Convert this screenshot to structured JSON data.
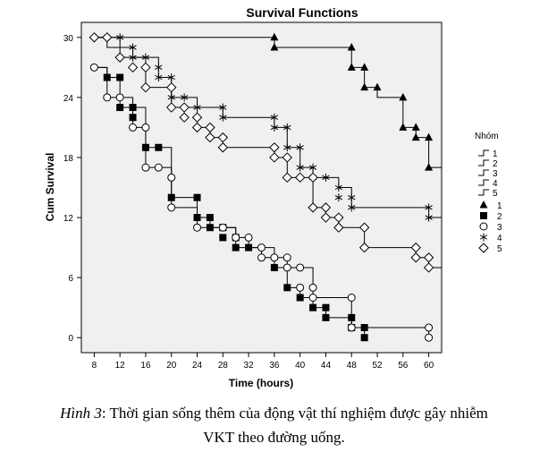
{
  "chart_data": {
    "type": "line",
    "title": "Survival Functions",
    "xlabel": "Time (hours)",
    "ylabel": "Cum Survival",
    "xlim": [
      6,
      62
    ],
    "ylim": [
      -1.5,
      31.5
    ],
    "xticks": [
      8,
      12,
      16,
      20,
      24,
      28,
      32,
      36,
      40,
      44,
      48,
      52,
      56,
      60
    ],
    "yticks": [
      0,
      6,
      12,
      18,
      24,
      30
    ],
    "legend_title": "Nhóm",
    "legend_position": "right",
    "series": [
      {
        "name": "1",
        "marker": "triangle",
        "steps": [
          [
            8,
            30
          ],
          [
            36,
            29
          ],
          [
            48,
            27
          ],
          [
            50,
            25
          ],
          [
            52,
            24
          ],
          [
            56,
            21
          ],
          [
            58,
            20
          ],
          [
            60,
            17
          ],
          [
            62,
            17
          ]
        ]
      },
      {
        "name": "2",
        "marker": "square",
        "steps": [
          [
            8,
            27
          ],
          [
            10,
            26
          ],
          [
            12,
            23
          ],
          [
            16,
            19
          ],
          [
            20,
            14
          ],
          [
            24,
            12
          ],
          [
            26,
            11
          ],
          [
            30,
            9
          ],
          [
            34,
            8
          ],
          [
            36,
            7
          ],
          [
            38,
            5
          ],
          [
            40,
            4
          ],
          [
            42,
            3
          ],
          [
            44,
            2
          ],
          [
            48,
            1
          ],
          [
            50,
            0
          ]
        ]
      },
      {
        "name": "3",
        "marker": "circle",
        "steps": [
          [
            8,
            27
          ],
          [
            10,
            24
          ],
          [
            14,
            21
          ],
          [
            16,
            17
          ],
          [
            20,
            13
          ],
          [
            24,
            11
          ],
          [
            30,
            10
          ],
          [
            32,
            9
          ],
          [
            36,
            8
          ],
          [
            38,
            7
          ],
          [
            42,
            4
          ],
          [
            48,
            1
          ],
          [
            60,
            0
          ]
        ]
      },
      {
        "name": "4",
        "marker": "star",
        "steps": [
          [
            8,
            30
          ],
          [
            12,
            29
          ],
          [
            14,
            28
          ],
          [
            18,
            26
          ],
          [
            20,
            24
          ],
          [
            24,
            23
          ],
          [
            28,
            22
          ],
          [
            36,
            21
          ],
          [
            38,
            19
          ],
          [
            40,
            17
          ],
          [
            42,
            16
          ],
          [
            46,
            15
          ],
          [
            48,
            13
          ],
          [
            60,
            12
          ],
          [
            62,
            12
          ]
        ]
      },
      {
        "name": "5",
        "marker": "diamond",
        "steps": [
          [
            8,
            30
          ],
          [
            10,
            29
          ],
          [
            12,
            28
          ],
          [
            16,
            25
          ],
          [
            20,
            23
          ],
          [
            24,
            21
          ],
          [
            26,
            20
          ],
          [
            28,
            19
          ],
          [
            36,
            18
          ],
          [
            38,
            16
          ],
          [
            42,
            13
          ],
          [
            44,
            12
          ],
          [
            46,
            11
          ],
          [
            50,
            9
          ],
          [
            58,
            8
          ],
          [
            60,
            7
          ],
          [
            62,
            7
          ]
        ]
      }
    ],
    "markers": [
      {
        "series": "1",
        "points": [
          [
            36,
            30
          ],
          [
            36,
            29
          ],
          [
            48,
            29
          ],
          [
            48,
            27
          ],
          [
            50,
            27
          ],
          [
            50,
            25
          ],
          [
            52,
            25
          ],
          [
            56,
            24
          ],
          [
            56,
            21
          ],
          [
            58,
            21
          ],
          [
            58,
            20
          ],
          [
            60,
            20
          ],
          [
            60,
            17
          ]
        ]
      },
      {
        "series": "2",
        "points": [
          [
            10,
            26
          ],
          [
            12,
            26
          ],
          [
            12,
            23
          ],
          [
            14,
            23
          ],
          [
            14,
            22
          ],
          [
            16,
            19
          ],
          [
            18,
            19
          ],
          [
            20,
            14
          ],
          [
            24,
            14
          ],
          [
            24,
            12
          ],
          [
            26,
            12
          ],
          [
            26,
            11
          ],
          [
            28,
            11
          ],
          [
            28,
            10
          ],
          [
            30,
            10
          ],
          [
            30,
            9
          ],
          [
            32,
            9
          ],
          [
            36,
            7
          ],
          [
            38,
            5
          ],
          [
            40,
            4
          ],
          [
            42,
            3
          ],
          [
            44,
            3
          ],
          [
            44,
            2
          ],
          [
            48,
            2
          ],
          [
            48,
            1
          ],
          [
            50,
            1
          ],
          [
            50,
            0
          ]
        ]
      },
      {
        "series": "3",
        "points": [
          [
            8,
            27
          ],
          [
            10,
            24
          ],
          [
            12,
            24
          ],
          [
            14,
            21
          ],
          [
            16,
            21
          ],
          [
            16,
            17
          ],
          [
            18,
            17
          ],
          [
            20,
            16
          ],
          [
            20,
            13
          ],
          [
            24,
            11
          ],
          [
            28,
            11
          ],
          [
            30,
            10
          ],
          [
            32,
            10
          ],
          [
            34,
            9
          ],
          [
            34,
            8
          ],
          [
            36,
            8
          ],
          [
            38,
            8
          ],
          [
            38,
            7
          ],
          [
            40,
            7
          ],
          [
            40,
            5
          ],
          [
            42,
            5
          ],
          [
            42,
            4
          ],
          [
            48,
            4
          ],
          [
            48,
            1
          ],
          [
            60,
            1
          ],
          [
            60,
            0
          ]
        ]
      },
      {
        "series": "4",
        "points": [
          [
            12,
            30
          ],
          [
            14,
            28
          ],
          [
            14,
            29
          ],
          [
            16,
            28
          ],
          [
            18,
            27
          ],
          [
            18,
            26
          ],
          [
            20,
            26
          ],
          [
            20,
            24
          ],
          [
            22,
            24
          ],
          [
            24,
            23
          ],
          [
            28,
            23
          ],
          [
            28,
            22
          ],
          [
            36,
            22
          ],
          [
            36,
            21
          ],
          [
            38,
            21
          ],
          [
            38,
            19
          ],
          [
            40,
            19
          ],
          [
            40,
            17
          ],
          [
            42,
            17
          ],
          [
            42,
            16
          ],
          [
            44,
            16
          ],
          [
            46,
            15
          ],
          [
            46,
            14
          ],
          [
            48,
            14
          ],
          [
            48,
            13
          ],
          [
            60,
            13
          ],
          [
            60,
            12
          ]
        ]
      },
      {
        "series": "5",
        "points": [
          [
            8,
            30
          ],
          [
            10,
            30
          ],
          [
            12,
            28
          ],
          [
            14,
            27
          ],
          [
            16,
            27
          ],
          [
            16,
            25
          ],
          [
            20,
            25
          ],
          [
            20,
            23
          ],
          [
            22,
            23
          ],
          [
            22,
            22
          ],
          [
            24,
            22
          ],
          [
            24,
            21
          ],
          [
            26,
            21
          ],
          [
            26,
            20
          ],
          [
            28,
            20
          ],
          [
            28,
            19
          ],
          [
            36,
            19
          ],
          [
            36,
            18
          ],
          [
            38,
            18
          ],
          [
            38,
            16
          ],
          [
            40,
            16
          ],
          [
            42,
            16
          ],
          [
            42,
            13
          ],
          [
            44,
            13
          ],
          [
            44,
            12
          ],
          [
            46,
            12
          ],
          [
            46,
            11
          ],
          [
            50,
            11
          ],
          [
            50,
            9
          ],
          [
            58,
            9
          ],
          [
            58,
            8
          ],
          [
            60,
            8
          ],
          [
            60,
            7
          ]
        ]
      }
    ]
  },
  "caption": {
    "figure_label": "Hình 3",
    "text": ": Thời gian sống thêm của động vật thí nghiệm được gây nhiễm",
    "line2": "VKT theo đường uống."
  }
}
